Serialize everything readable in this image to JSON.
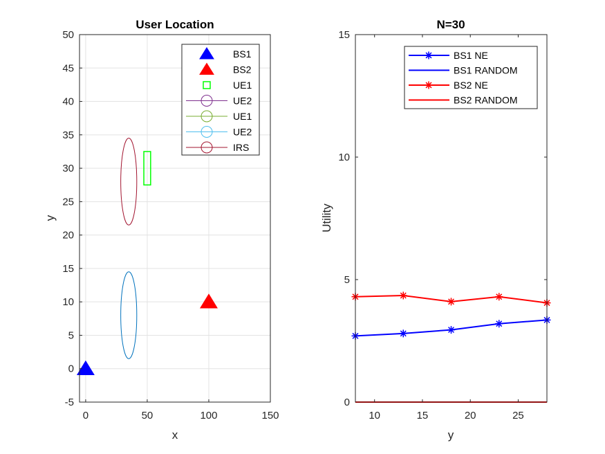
{
  "chart_data": [
    {
      "type": "scatter",
      "title": "User Location",
      "xlabel": "x",
      "ylabel": "y",
      "xlim": [
        -5,
        150
      ],
      "ylim": [
        -5,
        50
      ],
      "xticks": [
        0,
        50,
        100,
        150
      ],
      "yticks": [
        -5,
        0,
        5,
        10,
        15,
        20,
        25,
        30,
        35,
        40,
        45,
        50
      ],
      "grid": true,
      "legend_position": "top-right",
      "colors": {
        "bs1": "#0000ff",
        "bs2": "#ff0000",
        "ue1_square": "#00ff00",
        "ue2_legend": "#7e2f8e",
        "ue1_circle": "#77ac30",
        "ue2_circle": "#0072bd",
        "irs": "#a2142f"
      },
      "series": [
        {
          "name": "BS1",
          "marker": "triangle",
          "points": [
            [
              0,
              0
            ]
          ]
        },
        {
          "name": "BS2",
          "marker": "triangle",
          "points": [
            [
              100,
              10
            ]
          ]
        },
        {
          "name": "UE1",
          "marker": "square",
          "center": [
            50,
            30
          ],
          "half_size": 2.5
        },
        {
          "name": "UE2",
          "marker": "circle",
          "center": [
            35,
            8
          ],
          "radius": 6.5
        },
        {
          "name": "UE1",
          "marker": "circle"
        },
        {
          "name": "UE2",
          "marker": "circle"
        },
        {
          "name": "IRS",
          "marker": "circle",
          "center": [
            35,
            28
          ],
          "radius": 6.5
        }
      ],
      "legend": [
        {
          "label": "BS1",
          "kind": "tri",
          "color": "#0000ff"
        },
        {
          "label": "BS2",
          "kind": "tri",
          "color": "#ff0000"
        },
        {
          "label": "UE1",
          "kind": "square",
          "color": "#00ff00"
        },
        {
          "label": "UE2",
          "kind": "circle",
          "color": "#7e2f8e"
        },
        {
          "label": "UE1",
          "kind": "circle",
          "color": "#77ac30"
        },
        {
          "label": "UE2",
          "kind": "circle",
          "color": "#4dbeee"
        },
        {
          "label": "IRS",
          "kind": "circle",
          "color": "#a2142f"
        }
      ]
    },
    {
      "type": "line",
      "title": "N=30",
      "xlabel": "y",
      "ylabel": "Utility",
      "xlim": [
        8,
        28
      ],
      "ylim": [
        0,
        15
      ],
      "xticks": [
        10,
        15,
        20,
        25
      ],
      "yticks": [
        0,
        5,
        10,
        15
      ],
      "grid": false,
      "legend_position": "top-right",
      "x": [
        8,
        13,
        18,
        23,
        28
      ],
      "series": [
        {
          "name": "BS1 NE",
          "color": "#0000ff",
          "marker": "asterisk",
          "values": [
            2.7,
            2.8,
            2.95,
            3.2,
            3.35
          ]
        },
        {
          "name": "BS1 RANDOM",
          "color": "#0000ff",
          "marker": "none",
          "values": [
            0,
            0,
            0,
            0,
            0
          ]
        },
        {
          "name": "BS2 NE",
          "color": "#ff0000",
          "marker": "asterisk",
          "values": [
            4.3,
            4.35,
            4.1,
            4.3,
            4.05
          ]
        },
        {
          "name": "BS2 RANDOM",
          "color": "#ff0000",
          "marker": "none",
          "values": [
            0,
            0,
            0,
            0,
            0
          ]
        }
      ]
    }
  ]
}
